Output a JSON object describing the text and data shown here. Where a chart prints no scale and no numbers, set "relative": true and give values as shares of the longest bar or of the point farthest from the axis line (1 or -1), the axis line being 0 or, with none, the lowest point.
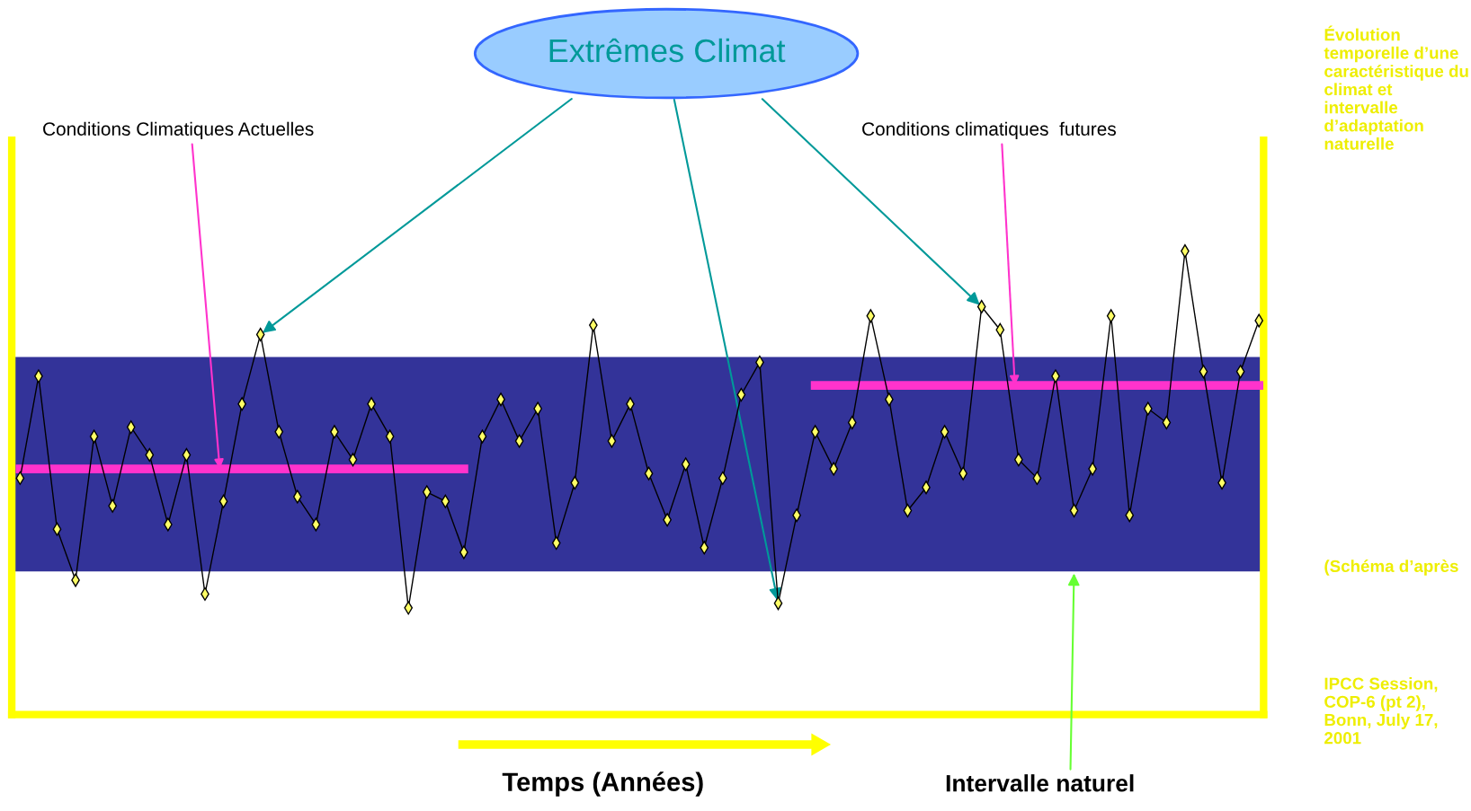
{
  "chart_data": {
    "type": "line",
    "title": "Extrêmes Climat",
    "xlabel": "Temps (Années)",
    "relative": true,
    "categories": [
      null,
      null,
      null,
      null,
      null,
      null,
      null,
      null,
      null,
      null,
      null,
      null,
      null,
      null,
      null,
      null,
      null,
      null,
      null,
      null,
      null,
      null,
      null,
      null,
      null,
      null,
      null,
      null,
      null,
      null,
      null,
      null,
      null,
      null,
      null,
      null,
      null,
      null,
      null,
      null,
      null,
      null,
      null,
      null,
      null,
      null,
      null,
      null,
      null,
      null,
      null,
      null,
      null,
      null,
      null,
      null,
      null,
      null,
      null,
      null,
      null,
      null,
      null,
      null,
      null,
      null,
      null,
      null
    ],
    "series": [
      {
        "color": "#000000",
        "marker": "diamond",
        "values": [
          0.51,
          0.73,
          0.4,
          0.29,
          0.6,
          0.45,
          0.62,
          0.56,
          0.41,
          0.56,
          0.26,
          0.46,
          0.67,
          0.82,
          0.61,
          0.47,
          0.41,
          0.61,
          0.55,
          0.67,
          0.6,
          0.23,
          0.48,
          0.46,
          0.35,
          0.6,
          0.68,
          0.59,
          0.66,
          0.37,
          0.5,
          0.84,
          0.59,
          0.67,
          0.52,
          0.42,
          0.54,
          0.36,
          0.51,
          0.69,
          0.76,
          0.24,
          0.43,
          0.61,
          0.53,
          0.63,
          0.86,
          0.68,
          0.44,
          0.49,
          0.61,
          0.52,
          0.88,
          0.83,
          0.55,
          0.51,
          0.73,
          0.44,
          0.53,
          0.86,
          0.43,
          0.66,
          0.63,
          1.0,
          0.74,
          0.5,
          0.74,
          0.85
        ]
      },
      {
        "name": "Conditions Climatiques Actuelles",
        "color": "#ff33cc",
        "values": [
          0.53,
          0.53,
          0.53,
          0.53,
          0.53,
          0.53,
          0.53,
          0.53,
          0.53,
          0.53,
          0.53,
          0.53,
          0.53,
          0.53,
          0.53,
          0.53,
          0.53,
          0.53,
          0.53,
          0.53,
          0.53,
          0.53,
          0.53,
          0.53,
          0.53,
          null,
          null,
          null,
          null,
          null,
          null,
          null,
          null,
          null,
          null,
          null,
          null,
          null,
          null,
          null,
          null,
          null,
          null,
          null,
          null,
          null,
          null,
          null,
          null,
          null,
          null,
          null,
          null,
          null,
          null,
          null,
          null,
          null,
          null,
          null,
          null,
          null,
          null,
          null,
          null,
          null,
          null,
          null
        ]
      },
      {
        "name": "Conditions climatiques  futures",
        "color": "#ff33cc",
        "values": [
          null,
          null,
          null,
          null,
          null,
          null,
          null,
          null,
          null,
          null,
          null,
          null,
          null,
          null,
          null,
          null,
          null,
          null,
          null,
          null,
          null,
          null,
          null,
          null,
          null,
          null,
          null,
          null,
          null,
          null,
          null,
          null,
          null,
          null,
          null,
          null,
          null,
          null,
          null,
          null,
          null,
          null,
          null,
          0.71,
          0.71,
          0.71,
          0.71,
          0.71,
          0.71,
          0.71,
          0.71,
          0.71,
          0.71,
          0.71,
          0.71,
          0.71,
          0.71,
          0.71,
          0.71,
          0.71,
          0.71,
          0.71,
          0.71,
          0.71,
          0.71,
          0.71,
          0.71,
          0.71
        ]
      }
    ],
    "bands": [
      {
        "axis": "y",
        "from": 0.31,
        "to": 0.77,
        "label": "Intervalle naturel",
        "color": "#333399"
      }
    ],
    "annotations": [
      "Évolution temporelle d’une caractéristique du climat et intervalle d’adaptation naturelle",
      "(Schéma d’après",
      "IPCC Session, COP-6 (pt 2), Bonn, July 17, 2001"
    ],
    "legend": false
  }
}
